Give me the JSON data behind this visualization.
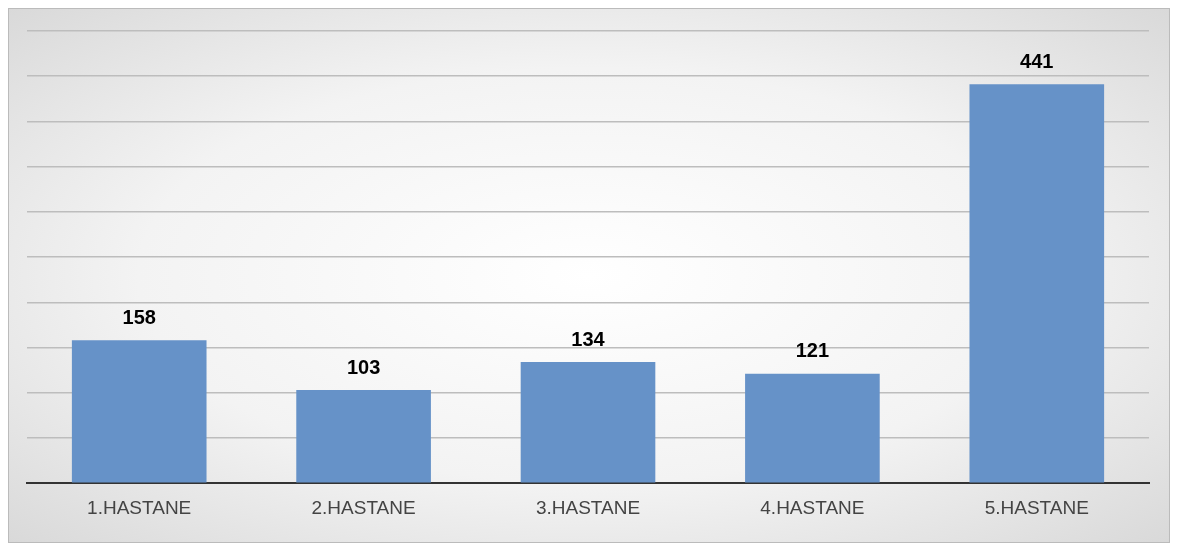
{
  "chart_data": {
    "type": "bar",
    "categories": [
      "1.HASTANE",
      "2.HASTANE",
      "3.HASTANE",
      "4.HASTANE",
      "5.HASTANE"
    ],
    "values": [
      158,
      103,
      134,
      121,
      441
    ],
    "color": "#6692c8",
    "ylim": [
      0,
      500
    ],
    "tick_labels": "x",
    "grid": "y",
    "data_labels": true
  }
}
